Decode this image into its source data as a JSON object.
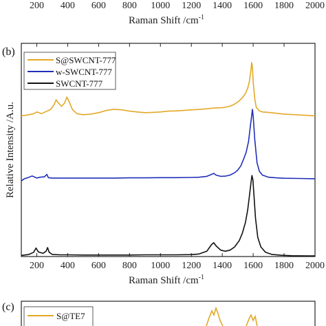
{
  "top_fragment": {
    "ticks": [
      "200",
      "400",
      "600",
      "800",
      "1000",
      "1200",
      "1400",
      "1600",
      "1800",
      "2000"
    ],
    "xlabel": "Raman Shift /cm"
  },
  "chart_data": {
    "type": "line",
    "panel_label": "(b)",
    "xlabel": "Raman Shift /cm",
    "xlabel_superscript": "-1",
    "ylabel": "Relative Intensity /A.u.",
    "xlim": [
      100,
      2000
    ],
    "ylim": [
      0,
      1
    ],
    "xticks": [
      200,
      400,
      600,
      800,
      1000,
      1200,
      1400,
      1600,
      1800,
      2000
    ],
    "grid": false,
    "legend_position": "top-left",
    "series": [
      {
        "name": "S@SWCNT-777",
        "color": "#E3A826",
        "x": [
          100,
          150,
          180,
          200,
          230,
          260,
          290,
          310,
          325,
          340,
          360,
          380,
          395,
          410,
          430,
          460,
          500,
          550,
          600,
          650,
          700,
          750,
          800,
          850,
          900,
          950,
          1000,
          1050,
          1100,
          1150,
          1200,
          1250,
          1300,
          1340,
          1360,
          1400,
          1450,
          1480,
          1510,
          1530,
          1550,
          1565,
          1575,
          1585,
          1590,
          1595,
          1600,
          1610,
          1620,
          1640,
          1660,
          1700,
          1750,
          1800,
          1850,
          1900,
          1950,
          2000
        ],
        "y": [
          0.66,
          0.665,
          0.67,
          0.678,
          0.67,
          0.68,
          0.69,
          0.71,
          0.735,
          0.72,
          0.705,
          0.72,
          0.748,
          0.725,
          0.69,
          0.67,
          0.665,
          0.668,
          0.675,
          0.685,
          0.69,
          0.688,
          0.682,
          0.678,
          0.675,
          0.676,
          0.678,
          0.682,
          0.683,
          0.685,
          0.688,
          0.69,
          0.693,
          0.696,
          0.697,
          0.698,
          0.705,
          0.715,
          0.73,
          0.745,
          0.765,
          0.79,
          0.82,
          0.87,
          0.91,
          0.89,
          0.82,
          0.74,
          0.7,
          0.683,
          0.678,
          0.676,
          0.672,
          0.668,
          0.666,
          0.664,
          0.662,
          0.66
        ]
      },
      {
        "name": "w-SWCNT-777",
        "color": "#1F2EB8",
        "x": [
          100,
          120,
          150,
          170,
          200,
          220,
          250,
          265,
          275,
          300,
          350,
          400,
          500,
          600,
          700,
          800,
          900,
          1000,
          1100,
          1200,
          1250,
          1300,
          1330,
          1345,
          1360,
          1390,
          1420,
          1450,
          1480,
          1500,
          1520,
          1540,
          1555,
          1570,
          1580,
          1590,
          1595,
          1600,
          1610,
          1625,
          1640,
          1660,
          1700,
          1750,
          1800,
          1900,
          2000
        ],
        "y": [
          0.355,
          0.365,
          0.372,
          0.378,
          0.368,
          0.372,
          0.374,
          0.385,
          0.37,
          0.368,
          0.368,
          0.368,
          0.368,
          0.368,
          0.368,
          0.369,
          0.369,
          0.37,
          0.37,
          0.371,
          0.372,
          0.376,
          0.385,
          0.39,
          0.382,
          0.376,
          0.377,
          0.382,
          0.393,
          0.405,
          0.425,
          0.46,
          0.49,
          0.54,
          0.6,
          0.66,
          0.69,
          0.66,
          0.55,
          0.44,
          0.4,
          0.382,
          0.372,
          0.369,
          0.367,
          0.366,
          0.365
        ]
      },
      {
        "name": "SWCNT-777",
        "color": "#111111",
        "x": [
          100,
          150,
          180,
          195,
          210,
          240,
          260,
          270,
          280,
          300,
          350,
          400,
          500,
          600,
          700,
          800,
          900,
          1000,
          1100,
          1200,
          1250,
          1300,
          1330,
          1345,
          1360,
          1390,
          1420,
          1450,
          1480,
          1510,
          1530,
          1550,
          1565,
          1575,
          1585,
          1592,
          1598,
          1605,
          1615,
          1630,
          1650,
          1680,
          1720,
          1780,
          1850,
          1950,
          2000
        ],
        "y": [
          0.005,
          0.01,
          0.02,
          0.04,
          0.022,
          0.015,
          0.025,
          0.042,
          0.02,
          0.01,
          0.008,
          0.008,
          0.007,
          0.007,
          0.007,
          0.007,
          0.008,
          0.008,
          0.008,
          0.009,
          0.012,
          0.025,
          0.055,
          0.065,
          0.05,
          0.03,
          0.025,
          0.03,
          0.045,
          0.075,
          0.11,
          0.16,
          0.22,
          0.28,
          0.34,
          0.38,
          0.36,
          0.29,
          0.18,
          0.09,
          0.045,
          0.02,
          0.01,
          0.006,
          0.004,
          0.003,
          0.003
        ]
      }
    ]
  },
  "bottom_fragment": {
    "panel_label": "(c)",
    "legend_entry": "S@TE7",
    "color": "#E3A826"
  }
}
